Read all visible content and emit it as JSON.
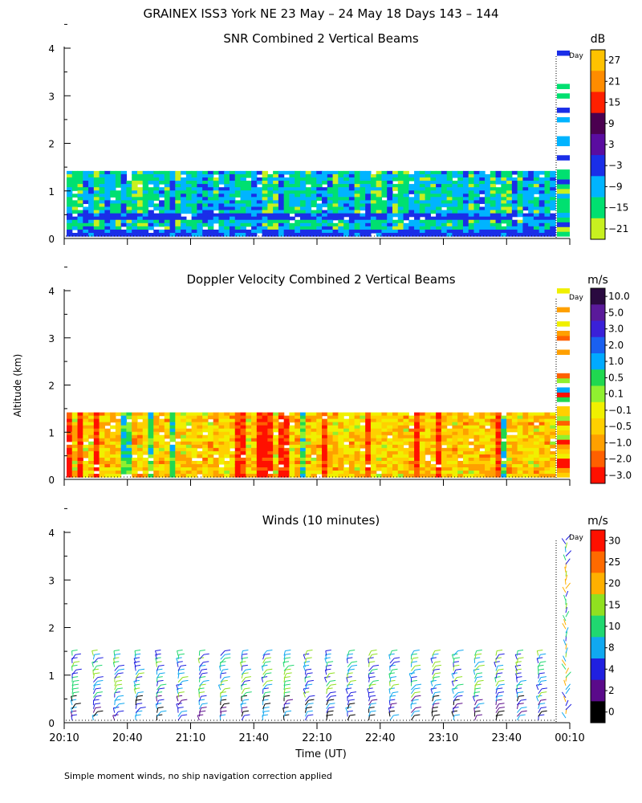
{
  "figure": {
    "title": "GRAINEX ISS3 York NE  23 May – 24 May 18 Days 143 – 144",
    "ylabel": "Altitude (km)",
    "xlabel": "Time (UT)",
    "footnote": "Simple moment winds, no ship navigation correction applied",
    "day_marker_label": "Day"
  },
  "chart_data": [
    {
      "type": "heatmap",
      "title": "SNR Combined 2 Vertical Beams",
      "ylim": [
        0,
        4
      ],
      "yticks": [
        "0",
        "1",
        "2",
        "3",
        "4"
      ],
      "colorbar": {
        "unit": "dB",
        "labels": [
          "27",
          "21",
          "15",
          "9",
          "3",
          "−3",
          "−9",
          "−15",
          "−21"
        ],
        "colors": [
          "#ffc200",
          "#ff8c00",
          "#ff2000",
          "#4b0050",
          "#5a0ca0",
          "#1a2ee8",
          "#00b4ff",
          "#00e070",
          "#c8f020"
        ]
      }
    },
    {
      "type": "heatmap",
      "title": "Doppler Velocity Combined 2 Vertical Beams",
      "ylim": [
        0,
        4
      ],
      "yticks": [
        "0",
        "1",
        "2",
        "3",
        "4"
      ],
      "colorbar": {
        "unit": "m/s",
        "labels": [
          "10.0",
          "5.0",
          "3.0",
          "2.0",
          "1.0",
          "0.5",
          "0.1",
          "−0.1",
          "−0.5",
          "−1.0",
          "−2.0",
          "−3.0"
        ],
        "colors": [
          "#2a0a40",
          "#5a1a9a",
          "#3a20d8",
          "#1a60f0",
          "#00aaff",
          "#20d850",
          "#90f030",
          "#f0f000",
          "#ffd000",
          "#ffa000",
          "#ff6000",
          "#ff1000"
        ]
      }
    },
    {
      "type": "heatmap",
      "title": "Winds (10 minutes)",
      "ylim": [
        0,
        4
      ],
      "yticks": [
        "0",
        "1",
        "2",
        "3",
        "4"
      ],
      "colorbar": {
        "unit": "m/s",
        "labels": [
          "30",
          "25",
          "20",
          "15",
          "10",
          "8",
          "4",
          "2",
          "0"
        ],
        "colors": [
          "#ff1000",
          "#ff6a00",
          "#ffb000",
          "#90e020",
          "#20d870",
          "#10a8f0",
          "#2020e0",
          "#5a0a8a",
          "#000000"
        ]
      }
    }
  ],
  "xaxis": {
    "ticks": [
      "20:10",
      "20:40",
      "21:10",
      "21:40",
      "22:10",
      "22:40",
      "23:10",
      "23:40",
      "00:10"
    ]
  }
}
